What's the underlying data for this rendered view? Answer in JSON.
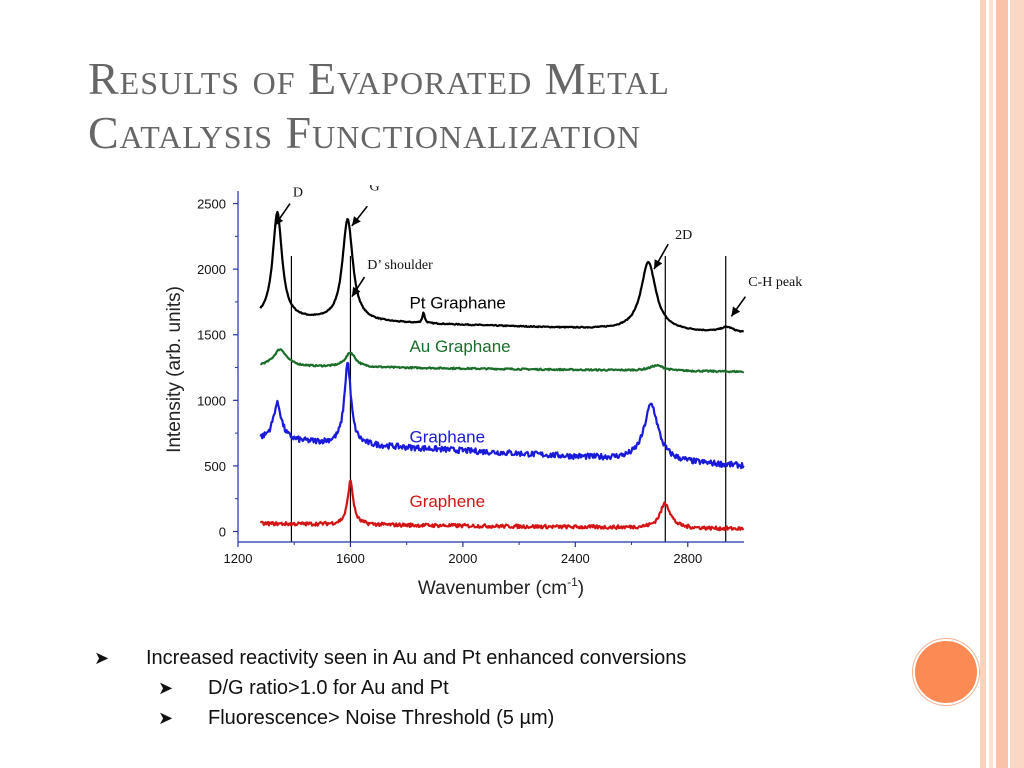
{
  "slide": {
    "title_line1": "Results of Evaporated Metal",
    "title_line2": "Catalysis Functionalization",
    "accent_color": "#fb8a55",
    "stripe_color": "#f9c3a8",
    "bullets": [
      {
        "text": "Increased reactivity seen in Au and Pt enhanced conversions",
        "level": 1
      },
      {
        "text": "D/G ratio>1.0 for Au and Pt",
        "level": 2
      },
      {
        "text": "Fluorescence> Noise Threshold (5 µm)",
        "level": 2
      }
    ],
    "bullet_icon": "arrowhead-bullet-icon"
  },
  "chart_data": {
    "type": "line",
    "xlabel": "Wavenumber (cm",
    "xlabel_sup": "-1",
    "xlabel_end": ")",
    "ylabel": "Intensity (arb. units)",
    "xlim": [
      1200,
      3000
    ],
    "ylim": [
      -80,
      2550
    ],
    "xticks": [
      1200,
      1600,
      2000,
      2400,
      2800
    ],
    "yticks": [
      0,
      500,
      1000,
      1500,
      2000,
      2500
    ],
    "grid": false,
    "reference_lines_x": [
      1390,
      1600,
      2720,
      2935
    ],
    "series": [
      {
        "name": "Pt Graphane",
        "color": "#000000",
        "baseline": 1520,
        "start": 1620,
        "end": 1510,
        "peaks": [
          [
            1340,
            810,
            20
          ],
          [
            1590,
            780,
            22
          ],
          [
            1860,
            80,
            5
          ],
          [
            2660,
            520,
            32
          ],
          [
            2940,
            40,
            28
          ]
        ],
        "noise": 4
      },
      {
        "name": "Au Graphane",
        "color": "#1a6e2a",
        "baseline": 1225,
        "start": 1260,
        "end": 1218,
        "peaks": [
          [
            1350,
            130,
            28
          ],
          [
            1600,
            110,
            22
          ],
          [
            2690,
            40,
            30
          ]
        ],
        "noise": 6
      },
      {
        "name": "Graphane",
        "color": "#1a1adb",
        "baseline": 520,
        "start": 700,
        "end": 500,
        "peaks": [
          [
            1340,
            280,
            18
          ],
          [
            1590,
            620,
            14
          ],
          [
            2670,
            430,
            30
          ]
        ],
        "noise": 22
      },
      {
        "name": "Graphene",
        "color": "#d41414",
        "baseline": 30,
        "start": 60,
        "end": 20,
        "peaks": [
          [
            1600,
            330,
            12
          ],
          [
            2720,
            190,
            22
          ]
        ],
        "noise": 14
      }
    ],
    "series_labels": [
      {
        "series": "Pt Graphane",
        "x": 1810,
        "y": 1700
      },
      {
        "series": "Au Graphane",
        "x": 1810,
        "y": 1370
      },
      {
        "series": "Graphane",
        "x": 1810,
        "y": 680
      },
      {
        "series": "Graphene",
        "x": 1810,
        "y": 185
      }
    ],
    "annotations": [
      {
        "text": "D",
        "tip": [
          1330,
          2330
        ],
        "tail": [
          1385,
          2500
        ],
        "text_at": [
          1395,
          2555
        ]
      },
      {
        "text": "G",
        "tip": [
          1605,
          2330
        ],
        "tail": [
          1660,
          2480
        ],
        "text_at": [
          1668,
          2600
        ]
      },
      {
        "text": "D’ shoulder",
        "tip": [
          1605,
          1790
        ],
        "tail": [
          1650,
          1940
        ],
        "text_at": [
          1660,
          2000
        ]
      },
      {
        "text": "2D",
        "tip": [
          2680,
          2000
        ],
        "tail": [
          2730,
          2190
        ],
        "text_at": [
          2755,
          2230
        ]
      },
      {
        "text": "C-H peak",
        "tip": [
          2955,
          1640
        ],
        "tail": [
          3005,
          1790
        ],
        "text_at": [
          3015,
          1870
        ]
      }
    ]
  }
}
